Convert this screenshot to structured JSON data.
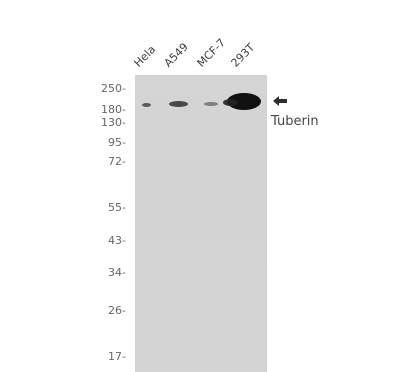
{
  "lanes": [
    "Hela",
    "A549",
    "MCF-7",
    "293T"
  ],
  "markers": [
    "250-",
    "180-",
    "130-",
    "95-",
    "72-",
    "55-",
    "43-",
    "34-",
    "26-",
    "17-"
  ],
  "target": {
    "label": "Tuberin",
    "arrow_icon": "left-arrow-icon"
  }
}
